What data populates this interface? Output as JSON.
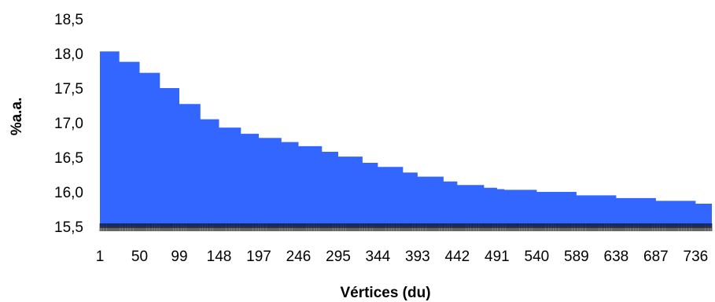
{
  "chart_data": {
    "type": "area",
    "title": "",
    "xlabel": "Vértices (du)",
    "ylabel": "%a.a.",
    "ylim": [
      15.5,
      18.5
    ],
    "yticks": [
      "15,5",
      "16,0",
      "16,5",
      "17,0",
      "17,5",
      "18,0",
      "18,5"
    ],
    "ytick_values": [
      15.5,
      16.0,
      16.5,
      17.0,
      17.5,
      18.0,
      18.5
    ],
    "xlim": [
      1,
      756
    ],
    "xticks": [
      "1",
      "50",
      "99",
      "148",
      "197",
      "246",
      "295",
      "344",
      "393",
      "442",
      "491",
      "540",
      "589",
      "638",
      "687",
      "736"
    ],
    "xtick_values": [
      1,
      50,
      99,
      148,
      197,
      246,
      295,
      344,
      393,
      442,
      491,
      540,
      589,
      638,
      687,
      736
    ],
    "grid": false,
    "fill_color": "#3366ff",
    "series": [
      {
        "x": [
          1,
          25,
          50,
          75,
          99,
          125,
          148,
          175,
          197,
          225,
          246,
          275,
          295,
          325,
          344,
          375,
          393,
          425,
          442,
          475,
          491,
          500,
          540,
          589,
          638,
          687,
          736,
          756
        ],
        "y": [
          18.03,
          17.88,
          17.72,
          17.5,
          17.27,
          17.05,
          16.93,
          16.84,
          16.78,
          16.72,
          16.66,
          16.58,
          16.51,
          16.42,
          16.36,
          16.28,
          16.22,
          16.15,
          16.1,
          16.06,
          16.04,
          16.03,
          16.0,
          15.95,
          15.91,
          15.87,
          15.83,
          15.81
        ]
      }
    ]
  }
}
